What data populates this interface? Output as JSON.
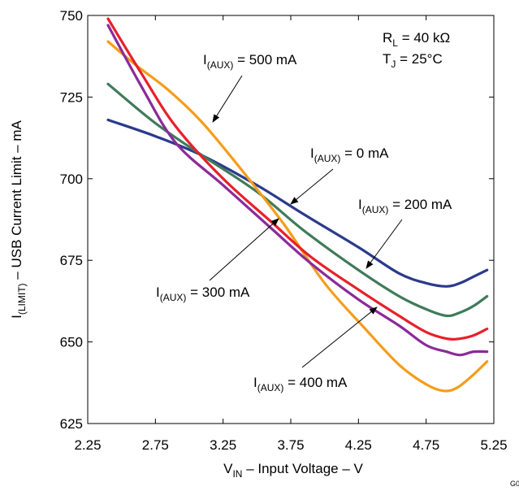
{
  "chart_data": {
    "type": "line",
    "xlabel": {
      "main": "V",
      "sub": "IN",
      "rest": " – Input Voltage – V"
    },
    "ylabel": {
      "main": "I",
      "sub": "(LIMIT)",
      "rest": " – USB Current Limit – mA"
    },
    "xlim": [
      2.25,
      5.25
    ],
    "ylim": [
      625,
      750
    ],
    "x_ticks": [
      "2.25",
      "2.75",
      "3.25",
      "3.75",
      "4.25",
      "4.75",
      "5.25"
    ],
    "y_ticks": [
      "625",
      "650",
      "675",
      "700",
      "725",
      "750"
    ],
    "grid": false,
    "figure_code": "G0",
    "conditions": [
      {
        "main": "R",
        "sub": "L",
        "rest": " = 40 kΩ"
      },
      {
        "main": "T",
        "sub": "J",
        "rest": " = 25°C"
      }
    ],
    "series": [
      {
        "label": {
          "main": "I",
          "sub": "(AUX)",
          "rest": " = 0 mA"
        },
        "color": "#2b3a8c",
        "x": [
          2.4,
          2.75,
          3.1,
          3.5,
          3.85,
          4.25,
          4.55,
          4.75,
          4.9,
          5.0,
          5.1,
          5.2
        ],
        "y": [
          718,
          713,
          707,
          698,
          689,
          679,
          671,
          668,
          667,
          668,
          670,
          672
        ]
      },
      {
        "label": {
          "main": "I",
          "sub": "(AUX)",
          "rest": " = 200 mA"
        },
        "color": "#3f7b5a",
        "x": [
          2.4,
          2.75,
          3.1,
          3.5,
          3.85,
          4.25,
          4.55,
          4.75,
          4.9,
          5.0,
          5.1,
          5.2
        ],
        "y": [
          729,
          717,
          707,
          696,
          684,
          672,
          664,
          660,
          658,
          659,
          661,
          664
        ]
      },
      {
        "label": {
          "main": "I",
          "sub": "(AUX)",
          "rest": " = 300 mA"
        },
        "color": "#e8202a",
        "x": [
          2.4,
          2.65,
          2.9,
          3.25,
          3.6,
          3.9,
          4.25,
          4.55,
          4.75,
          4.9,
          5.0,
          5.1,
          5.2
        ],
        "y": [
          749,
          732,
          716,
          700,
          687,
          676,
          666,
          658,
          653,
          651,
          651,
          652,
          654
        ]
      },
      {
        "label": {
          "main": "I",
          "sub": "(AUX)",
          "rest": " = 400 mA"
        },
        "color": "#8b2a9a",
        "x": [
          2.4,
          2.65,
          2.9,
          3.25,
          3.6,
          3.9,
          4.25,
          4.55,
          4.75,
          4.9,
          5.0,
          5.1,
          5.2
        ],
        "y": [
          747,
          728,
          711,
          698,
          685,
          674,
          663,
          655,
          649,
          647,
          646,
          647,
          647
        ]
      },
      {
        "label": {
          "main": "I",
          "sub": "(AUX)",
          "rest": " = 500 mA"
        },
        "color": "#f59d1a",
        "x": [
          2.4,
          2.6,
          2.85,
          3.1,
          3.4,
          3.7,
          4.0,
          4.3,
          4.55,
          4.75,
          4.88,
          4.98,
          5.1,
          5.2
        ],
        "y": [
          742,
          735,
          727,
          717,
          702,
          686,
          668,
          654,
          643,
          637,
          635,
          636,
          640,
          644
        ]
      }
    ],
    "annotations": [
      {
        "target": 4,
        "label": {
          "main": "I",
          "sub": "(AUX)",
          "rest": " = 500 mA"
        }
      },
      {
        "target": 0,
        "label": {
          "main": "I",
          "sub": "(AUX)",
          "rest": " = 0 mA"
        }
      },
      {
        "target": 1,
        "label": {
          "main": "I",
          "sub": "(AUX)",
          "rest": " = 200 mA"
        }
      },
      {
        "target": 2,
        "label": {
          "main": "I",
          "sub": "(AUX)",
          "rest": " = 300 mA"
        }
      },
      {
        "target": 3,
        "label": {
          "main": "I",
          "sub": "(AUX)",
          "rest": " = 400 mA"
        }
      }
    ]
  }
}
